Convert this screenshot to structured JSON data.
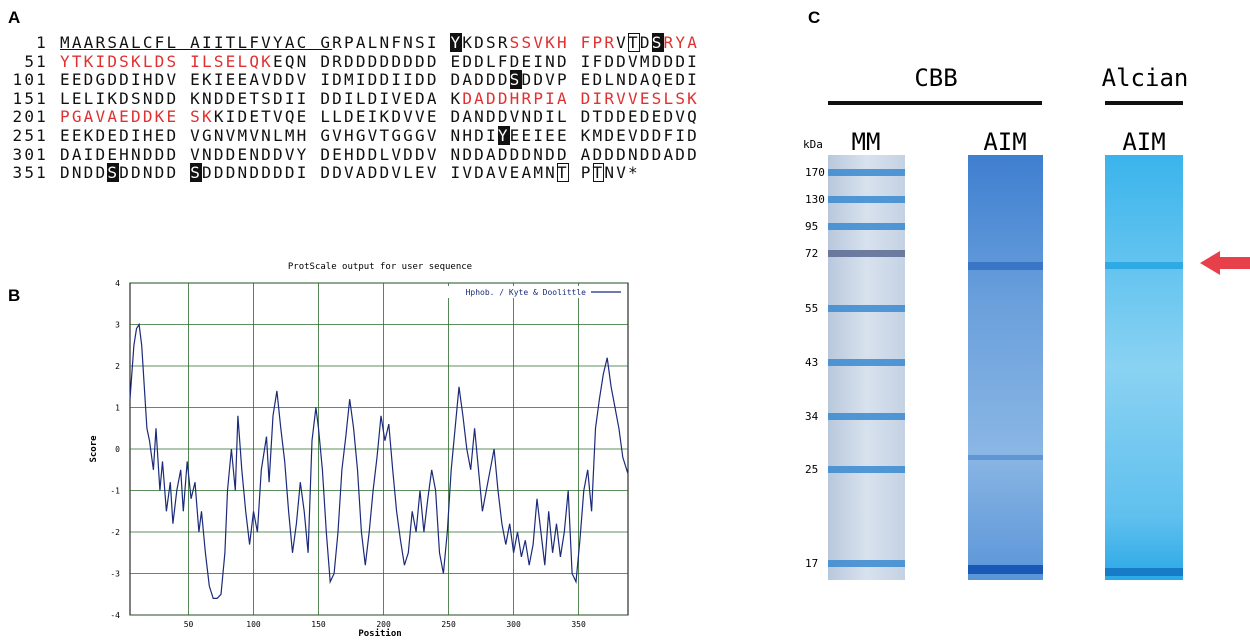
{
  "panel_a": {
    "label": "A",
    "lines": [
      {
        "number": "1",
        "segments": [
          {
            "text": "MAARSALCFL AIITLFVYAC G",
            "style": "underline"
          },
          {
            "text": "RPALNFNSI ",
            "style": "plain"
          },
          {
            "text": "Y",
            "style": "box-black"
          },
          {
            "text": "KDSR",
            "style": "plain"
          },
          {
            "text": "SSVKH FPR",
            "style": "red"
          },
          {
            "text": "V",
            "style": "plain"
          },
          {
            "text": "T",
            "style": "box-outline"
          },
          {
            "text": "D",
            "style": "plain"
          },
          {
            "text": "S",
            "style": "box-black"
          },
          {
            "text": "RYA",
            "style": "red"
          }
        ]
      },
      {
        "number": "51",
        "segments": [
          {
            "text": "YTKIDSKLDS ILSELQK",
            "style": "red"
          },
          {
            "text": "EQN DRDDDDDDDD EDDLFDEIND IFDDVMDDDI",
            "style": "plain"
          }
        ]
      },
      {
        "number": "101",
        "segments": [
          {
            "text": "EEDGDDIHDV EKIEEAVDDV IDMIDDIIDD DADDD",
            "style": "plain"
          },
          {
            "text": "S",
            "style": "box-black"
          },
          {
            "text": "DDVP EDLNDAQEDI",
            "style": "plain"
          }
        ]
      },
      {
        "number": "151",
        "segments": [
          {
            "text": "LELIKDSNDD KNDDETSDII DDILDIVEDA K",
            "style": "plain"
          },
          {
            "text": "DADDHRPIA DIRVVESLSK",
            "style": "red"
          }
        ]
      },
      {
        "number": "201",
        "segments": [
          {
            "text": "PGAVAEDDKE SK",
            "style": "red"
          },
          {
            "text": "KIDETVQE LLDEIKDVVE DANDDVNDIL DTDDEDEDVQ",
            "style": "plain"
          }
        ]
      },
      {
        "number": "251",
        "segments": [
          {
            "text": "EEKDEDIHED VGNVMVNLMH GVHGVTGGGV NHDI",
            "style": "plain"
          },
          {
            "text": "Y",
            "style": "box-black"
          },
          {
            "text": "EEIEE KMDEVDDFID",
            "style": "plain"
          }
        ]
      },
      {
        "number": "301",
        "segments": [
          {
            "text": "DAIDEHNDDD VNDDENDDVY DEHDDLVDDV NDDADDDNDD ADDDNDDADD",
            "style": "plain"
          }
        ]
      },
      {
        "number": "351",
        "segments": [
          {
            "text": "DNDD",
            "style": "plain"
          },
          {
            "text": "S",
            "style": "box-black"
          },
          {
            "text": "DDNDD ",
            "style": "plain"
          },
          {
            "text": "S",
            "style": "box-black"
          },
          {
            "text": "DDDNDDDDI DDVADDVLEV IVDAVEAMN",
            "style": "plain"
          },
          {
            "text": "T",
            "style": "box-outline"
          },
          {
            "text": " P",
            "style": "plain"
          },
          {
            "text": "T",
            "style": "box-outline"
          },
          {
            "text": "NV*",
            "style": "plain"
          }
        ]
      }
    ]
  },
  "chart_data": {
    "type": "line",
    "panel_label": "B",
    "title": "ProtScale output for user sequence",
    "x_label": "Position",
    "y_label": "Score",
    "xlim": [
      5,
      388
    ],
    "ylim": [
      -4,
      4
    ],
    "xticks": [
      50,
      100,
      150,
      200,
      250,
      300,
      350
    ],
    "yticks": [
      -4,
      -3,
      -2,
      -1,
      0,
      1,
      2,
      3,
      4
    ],
    "grid": true,
    "legend": "upper right",
    "x": [
      5,
      8,
      10,
      12,
      14,
      16,
      18,
      20,
      23,
      25,
      28,
      30,
      33,
      36,
      38,
      41,
      44,
      46,
      49,
      52,
      55,
      58,
      60,
      63,
      66,
      69,
      72,
      75,
      78,
      80,
      83,
      86,
      88,
      91,
      94,
      97,
      100,
      103,
      106,
      110,
      112,
      115,
      118,
      121,
      124,
      127,
      130,
      133,
      136,
      139,
      142,
      145,
      148,
      150,
      153,
      156,
      159,
      162,
      165,
      168,
      171,
      174,
      177,
      180,
      183,
      186,
      189,
      192,
      195,
      198,
      201,
      204,
      207,
      210,
      213,
      216,
      219,
      222,
      225,
      228,
      231,
      234,
      237,
      240,
      243,
      246,
      249,
      252,
      255,
      258,
      261,
      264,
      267,
      270,
      273,
      276,
      279,
      282,
      285,
      288,
      291,
      294,
      297,
      300,
      303,
      306,
      309,
      312,
      315,
      318,
      321,
      324,
      327,
      330,
      333,
      336,
      339,
      342,
      345,
      348,
      351,
      354,
      357,
      360,
      363,
      366,
      369,
      372,
      375,
      378,
      381,
      384,
      388
    ],
    "series": [
      {
        "name": "Hphob. / Kyte & Doolittle",
        "color": "#1c2a7a",
        "values": [
          1.2,
          2.5,
          2.9,
          3.0,
          2.5,
          1.5,
          0.5,
          0.2,
          -0.5,
          0.5,
          -1.0,
          -0.3,
          -1.5,
          -0.8,
          -1.8,
          -1.0,
          -0.5,
          -1.5,
          -0.3,
          -1.2,
          -0.8,
          -2.0,
          -1.5,
          -2.5,
          -3.3,
          -3.6,
          -3.6,
          -3.5,
          -2.5,
          -1.0,
          0.0,
          -1.0,
          0.8,
          -0.5,
          -1.5,
          -2.3,
          -1.5,
          -2.0,
          -0.5,
          0.3,
          -0.8,
          0.8,
          1.4,
          0.5,
          -0.3,
          -1.5,
          -2.5,
          -1.8,
          -0.8,
          -1.5,
          -2.5,
          0.2,
          1.0,
          0.5,
          -0.5,
          -2.0,
          -3.2,
          -3.0,
          -2.0,
          -0.5,
          0.3,
          1.2,
          0.5,
          -0.5,
          -2.0,
          -2.8,
          -2.0,
          -1.0,
          -0.2,
          0.8,
          0.2,
          0.6,
          -0.5,
          -1.5,
          -2.2,
          -2.8,
          -2.5,
          -1.5,
          -2.0,
          -1.0,
          -2.0,
          -1.2,
          -0.5,
          -1.0,
          -2.5,
          -3.0,
          -2.0,
          -0.5,
          0.5,
          1.5,
          0.8,
          0.0,
          -0.5,
          0.5,
          -0.5,
          -1.5,
          -1.0,
          -0.5,
          0.0,
          -1.0,
          -1.8,
          -2.3,
          -1.8,
          -2.5,
          -2.0,
          -2.6,
          -2.2,
          -2.8,
          -2.3,
          -1.2,
          -2.0,
          -2.8,
          -1.5,
          -2.5,
          -1.8,
          -2.6,
          -2.0,
          -1.0,
          -3.0,
          -3.2,
          -2.2,
          -1.0,
          -0.5,
          -1.5,
          0.5,
          1.2,
          1.8,
          2.2,
          1.5,
          1.0,
          0.5,
          -0.2,
          -0.6
        ]
      }
    ]
  },
  "panel_c": {
    "label": "C",
    "groups": [
      "CBB",
      "Alcian"
    ],
    "lanes": [
      "MM",
      "AIM",
      "AIM"
    ],
    "unit": "kDa",
    "markers": [
      170,
      130,
      95,
      72,
      55,
      43,
      34,
      25,
      17
    ]
  }
}
